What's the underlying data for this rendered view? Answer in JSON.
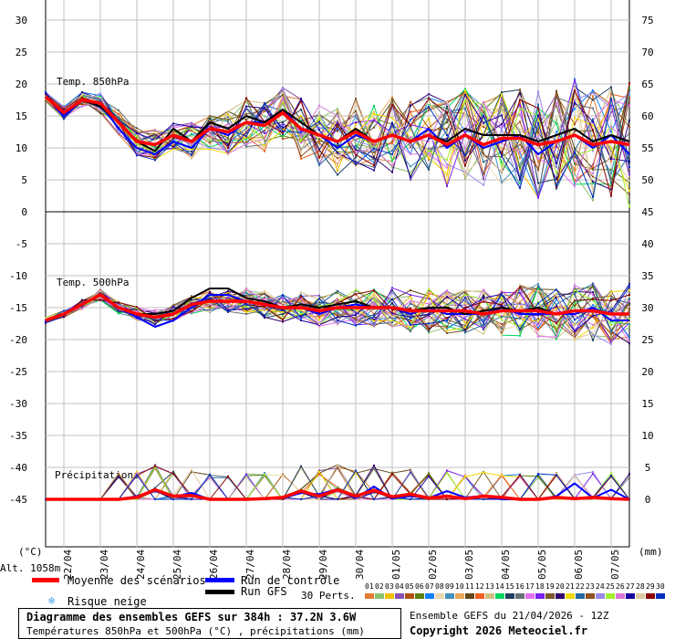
{
  "chart_data": {
    "type": "line",
    "title": "Diagramme des ensembles GEFS sur 384h : 37.2N 3.6W",
    "subtitle": "Températures 850hPa et 500hPa (°C) , précipitations (mm)",
    "run_info": "Ensemble GEFS du 21/04/2026 - 12Z",
    "copyright": "Copyright 2026 Meteociel.fr",
    "altitude": "Alt. 1058m",
    "left_unit": "(°C)",
    "right_unit": "(mm)",
    "left_ticks": [
      "30",
      "25",
      "20",
      "15",
      "10",
      "5",
      "0",
      "-5",
      "-10",
      "-15",
      "-20",
      "-25",
      "-30",
      "-35",
      "-40",
      "-45"
    ],
    "left_tick_values": [
      30,
      25,
      20,
      15,
      10,
      5,
      0,
      -5,
      -10,
      -15,
      -20,
      -25,
      -30,
      -35,
      -40,
      -45
    ],
    "right_ticks": [
      "75",
      "70",
      "65",
      "60",
      "55",
      "50",
      "45",
      "40",
      "35",
      "30",
      "25",
      "20",
      "15",
      "10",
      "5",
      "0"
    ],
    "x_ticks": [
      "22/04",
      "23/04",
      "24/04",
      "25/04",
      "26/04",
      "27/04",
      "28/04",
      "29/04",
      "30/04",
      "01/05",
      "02/05",
      "03/05",
      "04/05",
      "05/05",
      "06/05",
      "07/05"
    ],
    "x_step_hours": 12,
    "panel_labels": {
      "t850": "Temp. 850hPa",
      "t500": "Temp. 500hPa",
      "precip": "Précipitations"
    },
    "series": {
      "t850_mean": [
        18,
        15.5,
        17.5,
        17,
        14,
        11,
        10.5,
        12,
        11,
        13,
        12.5,
        14,
        13.5,
        15.5,
        13,
        12,
        11,
        12.5,
        11,
        12,
        11,
        12,
        10.5,
        12,
        10.5,
        11.5,
        11.5,
        10.5,
        11,
        12,
        10.5,
        11,
        10.5
      ],
      "t850_control": [
        18,
        15,
        17.5,
        17,
        13,
        10,
        9,
        11,
        10,
        13,
        12,
        14,
        14,
        16,
        13,
        12,
        10,
        12,
        11,
        12,
        11,
        13,
        10,
        12,
        10,
        11,
        12,
        9,
        11,
        12,
        10,
        12,
        9
      ],
      "t850_gfs": [
        18,
        15.5,
        17.5,
        16.5,
        14,
        11,
        9.5,
        13,
        11,
        14,
        13,
        15,
        14,
        16,
        14,
        12,
        11,
        13,
        11,
        12,
        11,
        12,
        11,
        13,
        12,
        12,
        12,
        11,
        12,
        13,
        11,
        12,
        11
      ],
      "t500_mean": [
        -17,
        -16,
        -14.5,
        -13,
        -15,
        -16,
        -16.5,
        -16,
        -14.5,
        -14,
        -14,
        -14,
        -14.5,
        -15,
        -15,
        -15.5,
        -15,
        -15,
        -15,
        -15,
        -15.5,
        -15.5,
        -15.5,
        -15.5,
        -16,
        -15.5,
        -15.5,
        -15.5,
        -16,
        -15.5,
        -15.5,
        -16,
        -16
      ],
      "t500_control": [
        -17,
        -16,
        -14.5,
        -13,
        -15,
        -16.5,
        -18,
        -17,
        -15,
        -13,
        -13,
        -14,
        -14.5,
        -15,
        -15,
        -16,
        -15,
        -14.5,
        -15,
        -15,
        -16,
        -15,
        -16,
        -16,
        -16,
        -15,
        -16,
        -16,
        -16,
        -16,
        -15,
        -17,
        -17
      ],
      "t500_gfs": [
        -17,
        -16,
        -14.5,
        -13,
        -15,
        -16,
        -16,
        -15.5,
        -13.5,
        -12,
        -12,
        -13.5,
        -14,
        -15,
        -14.5,
        -15,
        -14.5,
        -14,
        -15,
        -15,
        -15.5,
        -15,
        -15,
        -16,
        -15.5,
        -15,
        -15.5,
        -15,
        -16,
        -15.5,
        -15.5,
        -16,
        -16
      ],
      "precip_mean": [
        0,
        0,
        0,
        0,
        0,
        0.3,
        1.5,
        0.5,
        0.6,
        0,
        0,
        0,
        0.1,
        0.3,
        1.3,
        0.5,
        1.5,
        0.5,
        1.4,
        0.4,
        0.8,
        0.2,
        0.5,
        0.1,
        0.5,
        0.3,
        0,
        0,
        0.3,
        0.1,
        0.3,
        0.1,
        0
      ],
      "precip_control": [
        0,
        0,
        0,
        0,
        0,
        0.5,
        1.3,
        0.4,
        1.0,
        0,
        0,
        0,
        0,
        0.2,
        1,
        0.8,
        1.6,
        0.2,
        2,
        0.1,
        0.5,
        0.2,
        1.3,
        0.3,
        0.5,
        0,
        0,
        0,
        0.5,
        2.5,
        0.2,
        1.5,
        0
      ]
    },
    "legend": {
      "mean": "Moyenne des scénarios",
      "control": "Run de contrôle",
      "gfs": "Run GFS",
      "snow": "Risque neige",
      "perts": "30 Perts."
    },
    "mean_color": "#ff0000",
    "control_color": "#0000ff",
    "gfs_color": "#000000",
    "perturbations": {
      "labels": [
        "01",
        "02",
        "03",
        "04",
        "05",
        "06",
        "07",
        "08",
        "09",
        "10",
        "11",
        "12",
        "13",
        "14",
        "15",
        "16",
        "17",
        "18",
        "19",
        "20",
        "21",
        "22",
        "23",
        "24",
        "25",
        "26",
        "27",
        "28",
        "29",
        "30"
      ],
      "colors": [
        "#e07b30",
        "#88c070",
        "#f0c000",
        "#8850b0",
        "#b05010",
        "#588010",
        "#1080ff",
        "#e8d8b0",
        "#4090c0",
        "#e8a858",
        "#604818",
        "#f06020",
        "#d0c080",
        "#00d860",
        "#204060",
        "#687078",
        "#e070f0",
        "#7820f0",
        "#7a5828",
        "#300070",
        "#f0d800",
        "#2868a0",
        "#905020",
        "#9888e8",
        "#a0f030",
        "#d878d8",
        "#1800a0",
        "#e0c8a0",
        "#880000",
        "#0030c0"
      ]
    }
  }
}
